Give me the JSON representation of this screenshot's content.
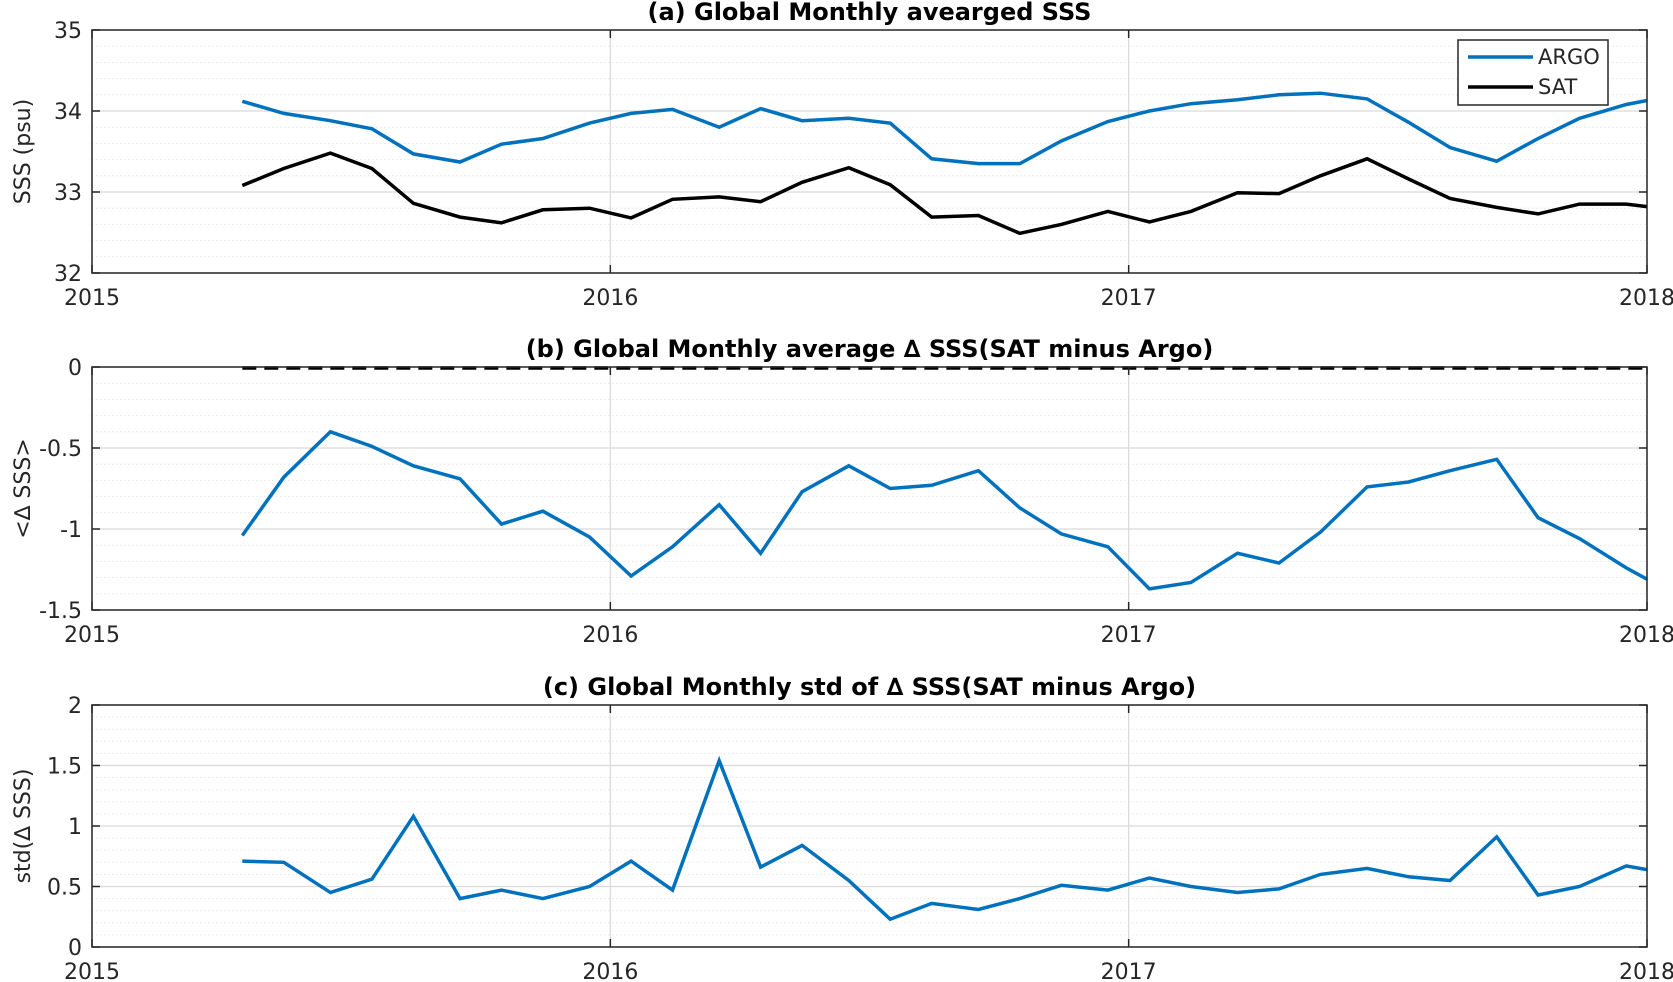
{
  "figure": {
    "panels_count": 3
  },
  "colors": {
    "argo": "#0072BD",
    "sat": "#000000",
    "grid_major": "#d9d9d9",
    "grid_minor": "#e6e6e6",
    "axis": "#262626"
  },
  "chart_data": [
    {
      "type": "line",
      "title": "(a) Global Monthly avearged SSS",
      "xlabel": "",
      "ylabel": "SSS (psu)",
      "xlim": [
        2015,
        2018
      ],
      "ylim": [
        32,
        35
      ],
      "xticks": [
        2015,
        2016,
        2017,
        2018
      ],
      "xtick_labels": [
        "2015",
        "2016",
        "2017",
        "2018"
      ],
      "yticks": [
        32,
        33,
        34,
        35
      ],
      "ytick_labels": [
        "32",
        "33",
        "34",
        "35"
      ],
      "grid": true,
      "minor_grid_y": true,
      "legend": {
        "position": "top-right",
        "entries": [
          "ARGO",
          "SAT"
        ]
      },
      "series": [
        {
          "name": "ARGO",
          "color": "#0072BD",
          "x": [
            2015.29,
            2015.37,
            2015.46,
            2015.54,
            2015.62,
            2015.71,
            2015.79,
            2015.87,
            2015.96,
            2016.04,
            2016.12,
            2016.21,
            2016.29,
            2016.37,
            2016.46,
            2016.54,
            2016.62,
            2016.71,
            2016.79,
            2016.87,
            2016.96,
            2017.04,
            2017.12,
            2017.21,
            2017.29,
            2017.37,
            2017.46,
            2017.54,
            2017.62,
            2017.71,
            2017.79,
            2017.87,
            2017.96,
            2018.0
          ],
          "y": [
            34.12,
            33.97,
            33.88,
            33.78,
            33.47,
            33.37,
            33.59,
            33.66,
            33.85,
            33.97,
            34.02,
            33.8,
            34.03,
            33.88,
            33.91,
            33.85,
            33.41,
            33.35,
            33.35,
            33.63,
            33.87,
            34.0,
            34.09,
            34.14,
            34.2,
            34.22,
            34.15,
            33.86,
            33.55,
            33.38,
            33.66,
            33.91,
            34.08,
            34.13
          ]
        },
        {
          "name": "SAT",
          "color": "#000000",
          "x": [
            2015.29,
            2015.37,
            2015.46,
            2015.54,
            2015.62,
            2015.71,
            2015.79,
            2015.87,
            2015.96,
            2016.04,
            2016.12,
            2016.21,
            2016.29,
            2016.37,
            2016.46,
            2016.54,
            2016.62,
            2016.71,
            2016.79,
            2016.87,
            2016.96,
            2017.04,
            2017.12,
            2017.21,
            2017.29,
            2017.37,
            2017.46,
            2017.54,
            2017.62,
            2017.71,
            2017.79,
            2017.87,
            2017.96,
            2018.0
          ],
          "y": [
            33.08,
            33.29,
            33.48,
            33.29,
            32.86,
            32.69,
            32.62,
            32.78,
            32.8,
            32.68,
            32.91,
            32.94,
            32.88,
            33.12,
            33.3,
            33.09,
            32.69,
            32.71,
            32.49,
            32.6,
            32.76,
            32.63,
            32.76,
            32.99,
            32.98,
            33.2,
            33.41,
            33.16,
            32.92,
            32.81,
            32.73,
            32.85,
            32.85,
            32.82
          ]
        }
      ]
    },
    {
      "type": "line",
      "title": "(b) Global Monthly average ∆ SSS(SAT minus Argo)",
      "xlabel": "",
      "ylabel": "<∆ SSS>",
      "xlim": [
        2015,
        2018
      ],
      "ylim": [
        -1.5,
        0
      ],
      "xticks": [
        2015,
        2016,
        2017,
        2018
      ],
      "xtick_labels": [
        "2015",
        "2016",
        "2017",
        "2018"
      ],
      "yticks": [
        -1.5,
        -1,
        -0.5,
        0
      ],
      "ytick_labels": [
        "-1.5",
        "-1",
        "-0.5",
        "0"
      ],
      "grid": true,
      "minor_grid_y": true,
      "reference_line": {
        "y": 0,
        "style": "dashed",
        "color": "#000000"
      },
      "series": [
        {
          "color": "#0072BD",
          "x": [
            2015.29,
            2015.37,
            2015.46,
            2015.54,
            2015.62,
            2015.71,
            2015.79,
            2015.87,
            2015.96,
            2016.04,
            2016.12,
            2016.21,
            2016.29,
            2016.37,
            2016.46,
            2016.54,
            2016.62,
            2016.71,
            2016.79,
            2016.87,
            2016.96,
            2017.04,
            2017.12,
            2017.21,
            2017.29,
            2017.37,
            2017.46,
            2017.54,
            2017.62,
            2017.71,
            2017.79,
            2017.87,
            2017.96,
            2018.0
          ],
          "y": [
            -1.04,
            -0.68,
            -0.4,
            -0.49,
            -0.61,
            -0.69,
            -0.97,
            -0.89,
            -1.05,
            -1.29,
            -1.11,
            -0.85,
            -1.15,
            -0.77,
            -0.61,
            -0.75,
            -0.73,
            -0.64,
            -0.87,
            -1.03,
            -1.11,
            -1.37,
            -1.33,
            -1.15,
            -1.21,
            -1.02,
            -0.74,
            -0.71,
            -0.64,
            -0.57,
            -0.93,
            -1.06,
            -1.24,
            -1.31
          ]
        }
      ]
    },
    {
      "type": "line",
      "title": "(c) Global Monthly std of ∆ SSS(SAT minus Argo)",
      "xlabel": "",
      "ylabel": "std(∆ SSS)",
      "xlim": [
        2015,
        2018
      ],
      "ylim": [
        0,
        2
      ],
      "xticks": [
        2015,
        2016,
        2017,
        2018
      ],
      "xtick_labels": [
        "2015",
        "2016",
        "2017",
        "2018"
      ],
      "yticks": [
        0,
        0.5,
        1,
        1.5,
        2
      ],
      "ytick_labels": [
        "0",
        "0.5",
        "1",
        "1.5",
        "2"
      ],
      "grid": true,
      "minor_grid_y": true,
      "series": [
        {
          "color": "#0072BD",
          "x": [
            2015.29,
            2015.37,
            2015.46,
            2015.54,
            2015.62,
            2015.71,
            2015.79,
            2015.87,
            2015.96,
            2016.04,
            2016.12,
            2016.21,
            2016.29,
            2016.37,
            2016.46,
            2016.54,
            2016.62,
            2016.71,
            2016.79,
            2016.87,
            2016.96,
            2017.04,
            2017.12,
            2017.21,
            2017.29,
            2017.37,
            2017.46,
            2017.54,
            2017.62,
            2017.71,
            2017.79,
            2017.87,
            2017.96,
            2018.0
          ],
          "y": [
            0.71,
            0.7,
            0.45,
            0.56,
            1.08,
            0.4,
            0.47,
            0.4,
            0.5,
            0.71,
            0.47,
            1.54,
            0.66,
            0.84,
            0.55,
            0.23,
            0.36,
            0.31,
            0.4,
            0.51,
            0.47,
            0.57,
            0.5,
            0.45,
            0.48,
            0.6,
            0.65,
            0.58,
            0.55,
            0.91,
            0.43,
            0.5,
            0.67,
            0.64
          ]
        }
      ]
    }
  ]
}
